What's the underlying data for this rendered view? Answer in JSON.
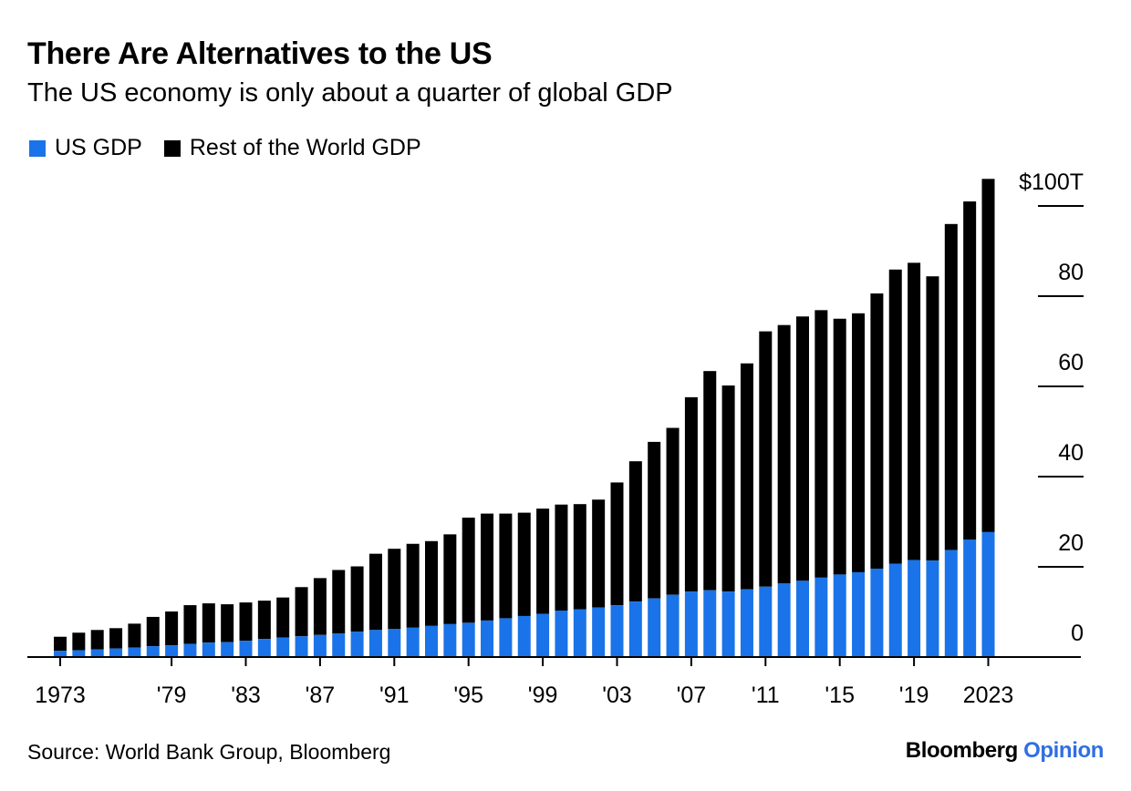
{
  "title": "There Are Alternatives to the US",
  "subtitle": "The US economy is only about a quarter of global GDP",
  "legend": [
    {
      "label": "US GDP",
      "color": "#1a73e8"
    },
    {
      "label": "Rest of the World GDP",
      "color": "#000000"
    }
  ],
  "source": "Source: World Bank Group, Bloomberg",
  "brand": {
    "part1": "Bloomberg",
    "part2": "Opinion"
  },
  "colors": {
    "us": "#1a73e8",
    "row": "#000000",
    "axis": "#000000"
  },
  "chart_data": {
    "type": "bar",
    "stacked": true,
    "title": "There Are Alternatives to the US",
    "subtitle": "The US economy is only about a quarter of global GDP",
    "x": [
      1973,
      1974,
      1975,
      1976,
      1977,
      1978,
      1979,
      1980,
      1981,
      1982,
      1983,
      1984,
      1985,
      1986,
      1987,
      1988,
      1989,
      1990,
      1991,
      1992,
      1993,
      1994,
      1995,
      1996,
      1997,
      1998,
      1999,
      2000,
      2001,
      2002,
      2003,
      2004,
      2005,
      2006,
      2007,
      2008,
      2009,
      2010,
      2011,
      2012,
      2013,
      2014,
      2015,
      2016,
      2017,
      2018,
      2019,
      2020,
      2021,
      2022,
      2023
    ],
    "x_tick_labels": [
      "1973",
      "'79",
      "'83",
      "'87",
      "'91",
      "'95",
      "'99",
      "'03",
      "'07",
      "'11",
      "'15",
      "'19",
      "2023"
    ],
    "x_tick_years": [
      1973,
      1979,
      1983,
      1987,
      1991,
      1995,
      1999,
      2003,
      2007,
      2011,
      2015,
      2019,
      2023
    ],
    "y_tick_labels": [
      "0",
      "20",
      "40",
      "60",
      "80",
      "$100T"
    ],
    "y_ticks": [
      0,
      20,
      40,
      60,
      80,
      100
    ],
    "ylim": [
      0,
      106
    ],
    "unit": "trillion US$",
    "series": [
      {
        "name": "US GDP",
        "values": [
          1.4,
          1.5,
          1.7,
          1.9,
          2.1,
          2.4,
          2.6,
          2.9,
          3.2,
          3.3,
          3.6,
          4.0,
          4.3,
          4.6,
          4.9,
          5.2,
          5.6,
          6.0,
          6.2,
          6.5,
          6.9,
          7.3,
          7.6,
          8.1,
          8.6,
          9.1,
          9.6,
          10.3,
          10.6,
          11.0,
          11.5,
          12.3,
          13.0,
          13.8,
          14.5,
          14.8,
          14.5,
          15.0,
          15.6,
          16.3,
          16.9,
          17.6,
          18.3,
          18.8,
          19.6,
          20.7,
          21.5,
          21.4,
          23.7,
          26.0,
          27.7
        ]
      },
      {
        "name": "Rest of the World GDP",
        "values": [
          3.1,
          3.9,
          4.3,
          4.5,
          5.3,
          6.5,
          7.5,
          8.6,
          8.7,
          8.4,
          8.5,
          8.5,
          8.9,
          10.9,
          12.6,
          14.1,
          14.5,
          16.9,
          17.8,
          18.6,
          18.8,
          19.9,
          23.3,
          23.7,
          23.2,
          22.9,
          23.3,
          23.5,
          23.3,
          23.9,
          27.2,
          31.1,
          34.7,
          37.0,
          43.1,
          48.6,
          45.7,
          50.1,
          56.6,
          57.3,
          58.6,
          59.3,
          56.7,
          57.4,
          61.0,
          65.2,
          65.9,
          63.0,
          72.3,
          75.0,
          78.3
        ]
      }
    ]
  }
}
